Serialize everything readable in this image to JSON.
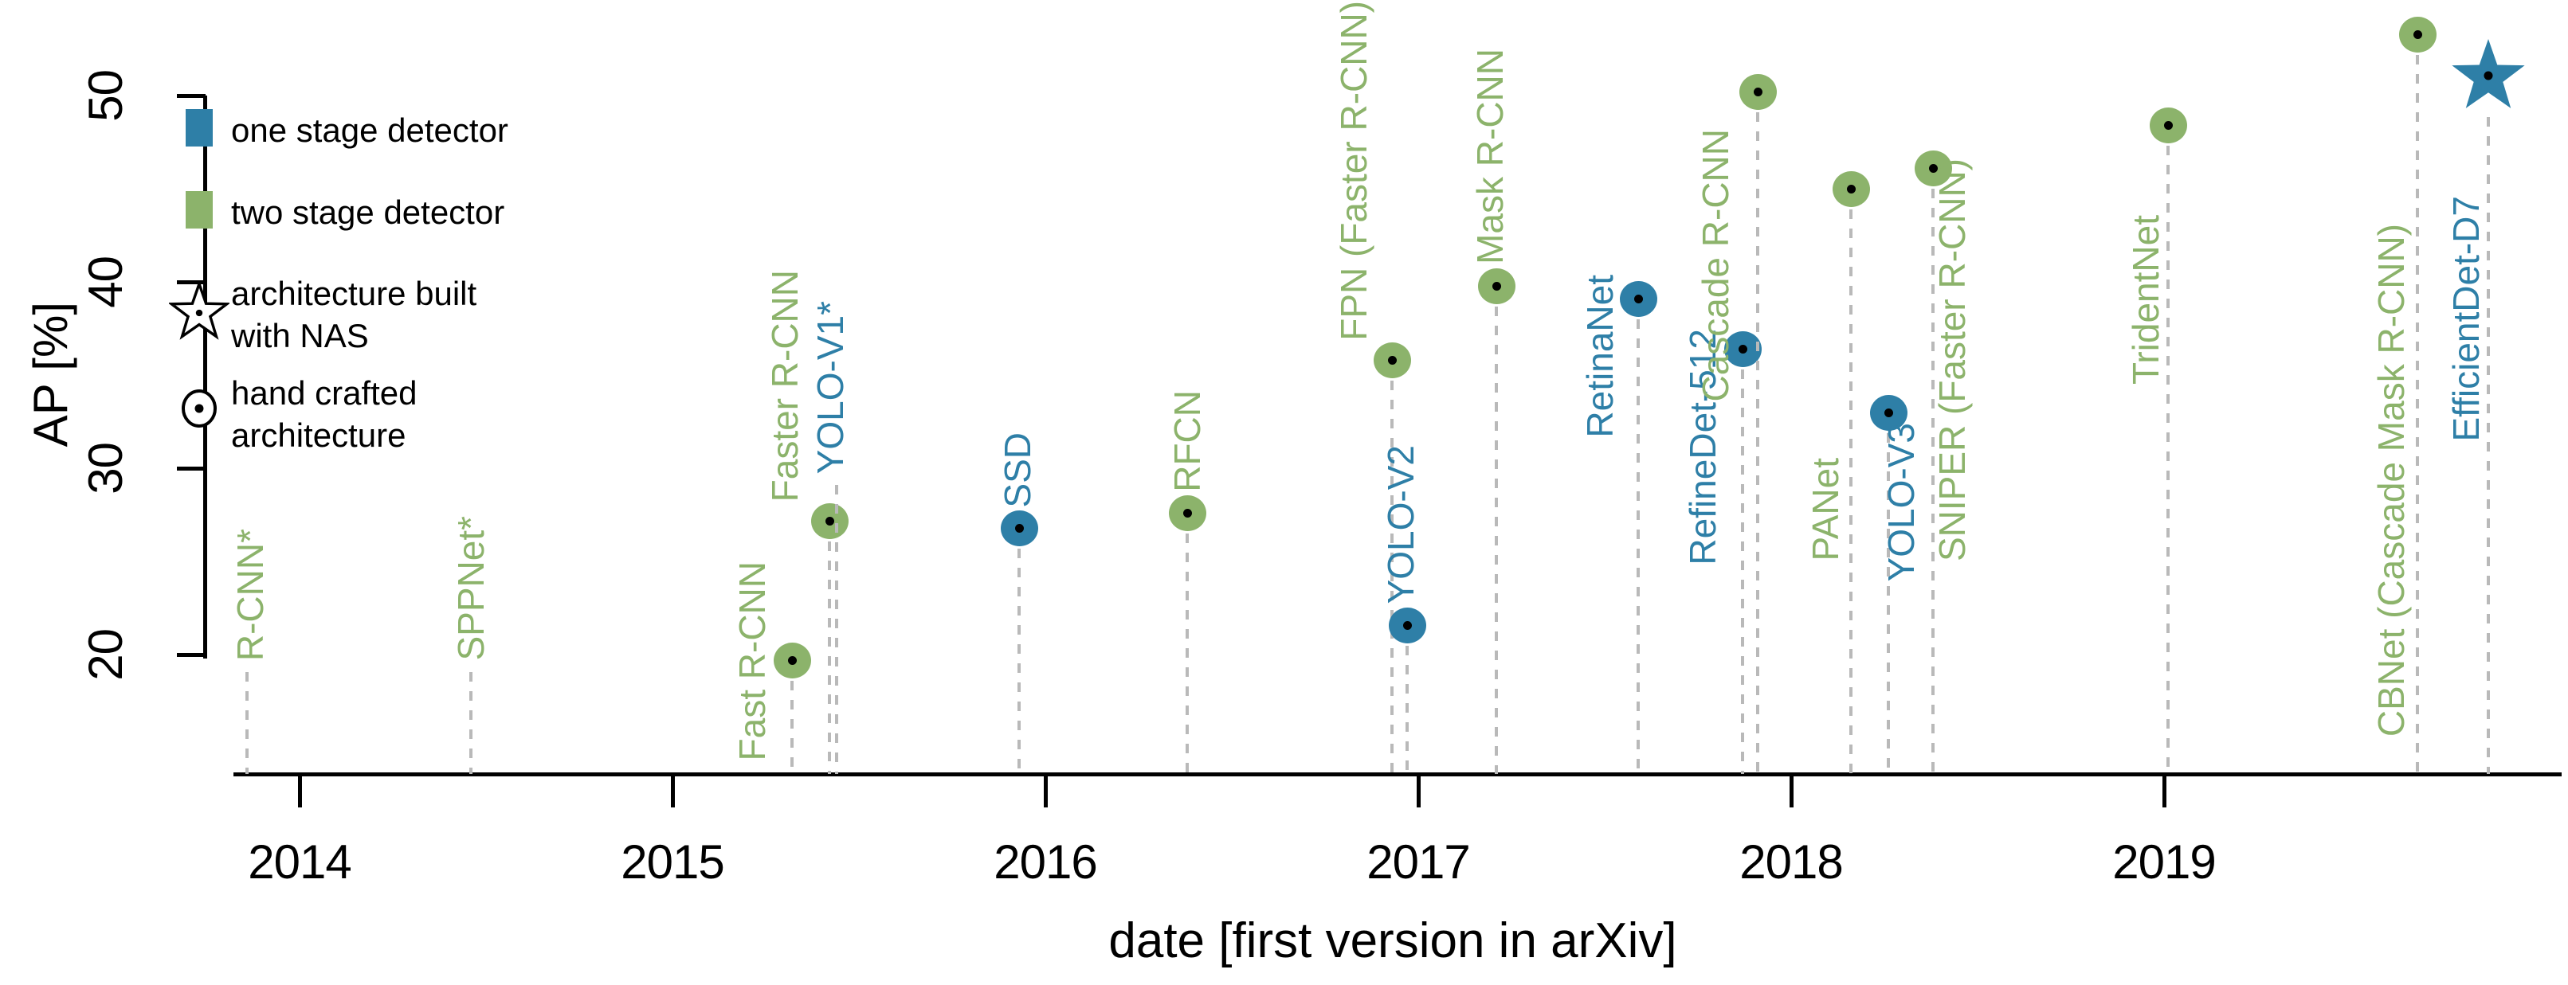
{
  "colors": {
    "one_stage": "#2e7fa7",
    "two_stage": "#8cb36b",
    "dash_line": "#b9b9b9",
    "text": "#000000"
  },
  "legend": {
    "items": [
      {
        "icon": "square-one-stage",
        "label": "one stage detector"
      },
      {
        "icon": "square-two-stage",
        "label": "two stage detector"
      },
      {
        "icon": "star",
        "lines": [
          "architecture built",
          "with NAS"
        ]
      },
      {
        "icon": "circle",
        "lines": [
          "hand crafted",
          "architecture"
        ]
      }
    ]
  },
  "chart_data": {
    "type": "scatter",
    "title": "",
    "xlabel": "date [first version in arXiv]",
    "ylabel": "AP [%]",
    "x_ticks": [
      2014,
      2015,
      2016,
      2017,
      2018,
      2019
    ],
    "y_ticks": [
      20,
      30,
      40,
      50
    ],
    "xlim": [
      2013.82,
      2020.07
    ],
    "ylim": [
      13.6,
      55.1
    ],
    "grid": false,
    "legend_position": "upper left",
    "marker_legend": {
      "star": "architecture built with NAS",
      "circle_dot": "hand crafted architecture"
    },
    "points": [
      {
        "name": "R-CNN*",
        "stage": "two",
        "date": 2013.86,
        "ap": null,
        "marker": "none"
      },
      {
        "name": "SPPNet*",
        "stage": "two",
        "date": 2014.46,
        "ap": null,
        "marker": "none"
      },
      {
        "name": "Fast R-CNN",
        "stage": "two",
        "date": 2015.32,
        "ap": 19.7,
        "marker": "circle"
      },
      {
        "name": "Faster R-CNN",
        "stage": "two",
        "date": 2015.42,
        "ap": 27.2,
        "marker": "circle"
      },
      {
        "name": "YOLO-V1*",
        "stage": "one",
        "date": 2015.44,
        "ap": null,
        "marker": "none"
      },
      {
        "name": "SSD",
        "stage": "one",
        "date": 2015.93,
        "ap": 26.8,
        "marker": "circle"
      },
      {
        "name": "RFCN",
        "stage": "two",
        "date": 2016.38,
        "ap": 27.6,
        "marker": "circle"
      },
      {
        "name": "FPN (Faster R-CNN)",
        "stage": "two",
        "date": 2016.93,
        "ap": 35.8,
        "marker": "circle"
      },
      {
        "name": "YOLO-V2",
        "stage": "one",
        "date": 2016.97,
        "ap": 21.6,
        "marker": "circle"
      },
      {
        "name": "Mask R-CNN",
        "stage": "two",
        "date": 2017.21,
        "ap": 39.8,
        "marker": "circle"
      },
      {
        "name": "RetinaNet",
        "stage": "one",
        "date": 2017.59,
        "ap": 39.1,
        "marker": "circle"
      },
      {
        "name": "RefineDet-512",
        "stage": "one",
        "date": 2017.87,
        "ap": 36.4,
        "marker": "circle"
      },
      {
        "name": "Cascade R-CNN",
        "stage": "two",
        "date": 2017.91,
        "ap": 50.2,
        "marker": "circle"
      },
      {
        "name": "PANet",
        "stage": "two",
        "date": 2018.16,
        "ap": 45.0,
        "marker": "circle"
      },
      {
        "name": "YOLO-V3",
        "stage": "one",
        "date": 2018.26,
        "ap": 33.0,
        "marker": "circle"
      },
      {
        "name": "SNIPER (Faster R-CNN)",
        "stage": "two",
        "date": 2018.38,
        "ap": 46.1,
        "marker": "circle"
      },
      {
        "name": "TridentNet",
        "stage": "two",
        "date": 2019.01,
        "ap": 48.4,
        "marker": "circle"
      },
      {
        "name": "CBNet (Cascade Mask R-CNN)",
        "stage": "two",
        "date": 2019.68,
        "ap": 53.3,
        "marker": "circle"
      },
      {
        "name": "EfficientDet-D7",
        "stage": "one",
        "date": 2019.87,
        "ap": 51.0,
        "marker": "star"
      }
    ]
  }
}
